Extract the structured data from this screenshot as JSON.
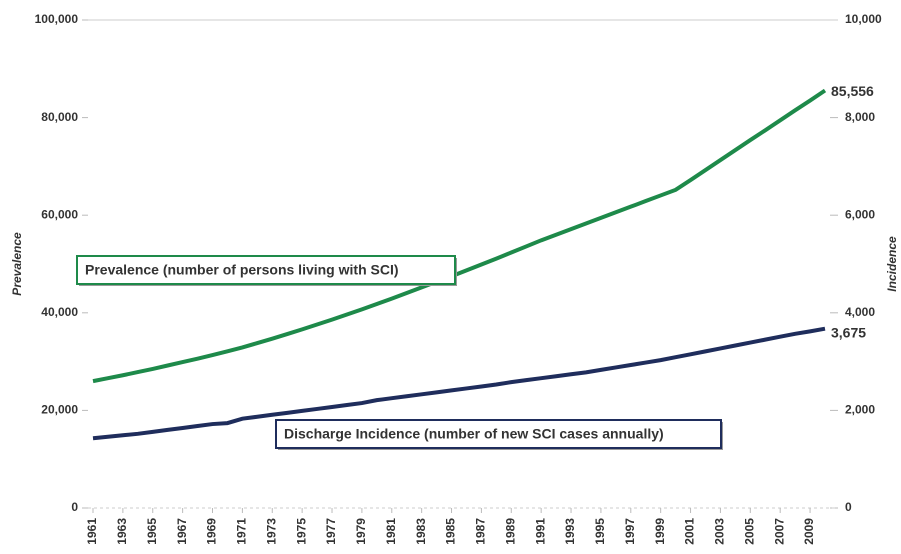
{
  "chart_data": {
    "type": "line",
    "x": [
      1961,
      1962,
      1963,
      1964,
      1965,
      1966,
      1967,
      1968,
      1969,
      1970,
      1971,
      1972,
      1973,
      1974,
      1975,
      1976,
      1977,
      1978,
      1979,
      1980,
      1981,
      1982,
      1983,
      1984,
      1985,
      1986,
      1987,
      1988,
      1989,
      1990,
      1991,
      1992,
      1993,
      1994,
      1995,
      1996,
      1997,
      1998,
      1999,
      2000,
      2001,
      2002,
      2003,
      2004,
      2005,
      2006,
      2007,
      2008,
      2009,
      2010
    ],
    "xlim": [
      1961,
      2010
    ],
    "xticks": [
      1961,
      1963,
      1965,
      1967,
      1969,
      1971,
      1973,
      1975,
      1977,
      1979,
      1981,
      1983,
      1985,
      1987,
      1989,
      1991,
      1993,
      1995,
      1997,
      1999,
      2001,
      2003,
      2005,
      2007,
      2009
    ],
    "ylabel": "Prevalence",
    "y2label": "Incidence",
    "ylim": [
      0,
      100000
    ],
    "yticks": [
      0,
      {
        "value": 20000,
        "label": "20,000"
      },
      {
        "value": 40000,
        "label": "40,000"
      },
      {
        "value": 60000,
        "label": "60,000"
      },
      {
        "value": 80000,
        "label": "80,000"
      },
      {
        "value": 100000,
        "label": "100,000"
      }
    ],
    "y2lim": [
      0,
      10000
    ],
    "y2ticks": [
      0,
      {
        "value": 2000,
        "label": "2,000"
      },
      {
        "value": 4000,
        "label": "4,000"
      },
      {
        "value": 6000,
        "label": "6,000"
      },
      {
        "value": 8000,
        "label": "8,000"
      },
      {
        "value": 10000,
        "label": "10,000"
      }
    ],
    "grid": false,
    "series": [
      {
        "name": "Prevalence (number of persons living with SCI)",
        "color": "#1e8a4a",
        "values": [
          26000,
          26600,
          27200,
          27850,
          28500,
          29200,
          29900,
          30600,
          31350,
          32100,
          32900,
          33800,
          34700,
          35650,
          36600,
          37600,
          38600,
          39650,
          40700,
          41800,
          42900,
          44050,
          45200,
          46350,
          47500,
          48700,
          49900,
          51100,
          52350,
          53600,
          54850,
          56000,
          57150,
          58300,
          59450,
          60600,
          61750,
          62900,
          64050,
          65200,
          67200,
          69250,
          71300,
          73350,
          75400,
          77400,
          79450,
          81500,
          83500,
          85556
        ],
        "value_labels": [
          null,
          null,
          null,
          null,
          null,
          null,
          null,
          null,
          null,
          null,
          null,
          null,
          null,
          null,
          null,
          null,
          null,
          null,
          null,
          null,
          null,
          null,
          null,
          null,
          null,
          null,
          null,
          null,
          null,
          null,
          null,
          null,
          null,
          null,
          null,
          null,
          null,
          null,
          null,
          null,
          null,
          null,
          null,
          null,
          null,
          null,
          null,
          null,
          null,
          "85,556"
        ]
      },
      {
        "name": "Discharge Incidence (number of new SCI cases annually)",
        "color": "#1f2d5c",
        "axis": "y2",
        "values": [
          1430,
          1460,
          1490,
          1520,
          1560,
          1600,
          1640,
          1680,
          1720,
          1740,
          1830,
          1870,
          1910,
          1950,
          1990,
          2030,
          2070,
          2110,
          2150,
          2210,
          2250,
          2290,
          2330,
          2370,
          2410,
          2450,
          2490,
          2530,
          2580,
          2620,
          2660,
          2700,
          2740,
          2780,
          2830,
          2880,
          2930,
          2980,
          3030,
          3090,
          3150,
          3210,
          3270,
          3330,
          3390,
          3450,
          3510,
          3570,
          3620,
          3675
        ],
        "value_labels": [
          null,
          null,
          null,
          null,
          null,
          null,
          null,
          null,
          null,
          null,
          null,
          null,
          null,
          null,
          null,
          null,
          null,
          null,
          null,
          null,
          null,
          null,
          null,
          null,
          null,
          null,
          null,
          null,
          null,
          null,
          null,
          null,
          null,
          null,
          null,
          null,
          null,
          null,
          null,
          null,
          null,
          null,
          null,
          null,
          null,
          null,
          null,
          null,
          null,
          "3,675"
        ]
      }
    ]
  }
}
